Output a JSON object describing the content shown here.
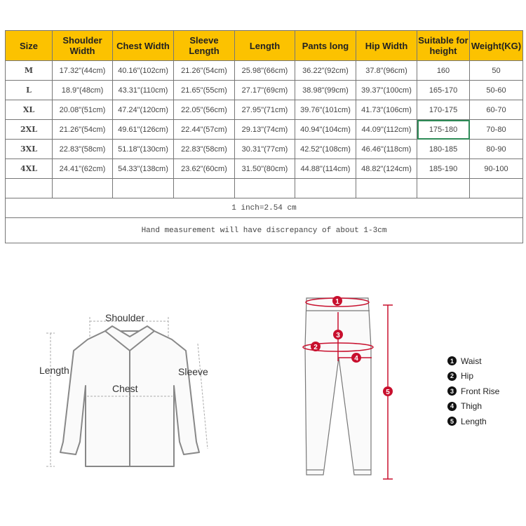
{
  "table": {
    "headers": [
      "Size",
      "Shoulder Width",
      "Chest Width",
      "Sleeve Length",
      "Length",
      "Pants long",
      "Hip Width",
      "Suitable for height",
      "Weight(KG)"
    ],
    "rows": [
      [
        "M",
        "17.32\"(44cm)",
        "40.16\"(102cm)",
        "21.26\"(54cm)",
        "25.98\"(66cm)",
        "36.22\"(92cm)",
        "37.8\"(96cm)",
        "160",
        "50"
      ],
      [
        "L",
        "18.9\"(48cm)",
        "43.31\"(110cm)",
        "21.65\"(55cm)",
        "27.17\"(69cm)",
        "38.98\"(99cm)",
        "39.37\"(100cm)",
        "165-170",
        "50-60"
      ],
      [
        "XL",
        "20.08\"(51cm)",
        "47.24\"(120cm)",
        "22.05\"(56cm)",
        "27.95\"(71cm)",
        "39.76\"(101cm)",
        "41.73\"(106cm)",
        "170-175",
        "60-70"
      ],
      [
        "2XL",
        "21.26\"(54cm)",
        "49.61\"(126cm)",
        "22.44\"(57cm)",
        "29.13\"(74cm)",
        "40.94\"(104cm)",
        "44.09\"(112cm)",
        "175-180",
        "70-80"
      ],
      [
        "3XL",
        "22.83\"(58cm)",
        "51.18\"(130cm)",
        "22.83\"(58cm)",
        "30.31\"(77cm)",
        "42.52\"(108cm)",
        "46.46\"(118cm)",
        "180-185",
        "80-90"
      ],
      [
        "4XL",
        "24.41\"(62cm)",
        "54.33\"(138cm)",
        "23.62\"(60cm)",
        "31.50\"(80cm)",
        "44.88\"(114cm)",
        "48.82\"(124cm)",
        "185-190",
        "90-100"
      ]
    ],
    "conversion_note": "1 inch=2.54 cm",
    "discrepancy_note": "Hand measurement will have discrepancy of about 1-3cm"
  },
  "shirt_diagram": {
    "shoulder": "Shoulder",
    "length": "Length",
    "chest": "Chest",
    "sleeve": "Sleeve"
  },
  "pants_diagram": {
    "markers": [
      "1",
      "2",
      "3",
      "4",
      "5"
    ],
    "legend": [
      {
        "num": "1",
        "label": "Waist"
      },
      {
        "num": "2",
        "label": "Hip"
      },
      {
        "num": "3",
        "label": "Front Rise"
      },
      {
        "num": "4",
        "label": "Thigh"
      },
      {
        "num": "5",
        "label": "Length"
      }
    ]
  },
  "colors": {
    "header": "#fcc200",
    "measure_red": "#c8102e",
    "selected_cell": "#2e8b57"
  }
}
